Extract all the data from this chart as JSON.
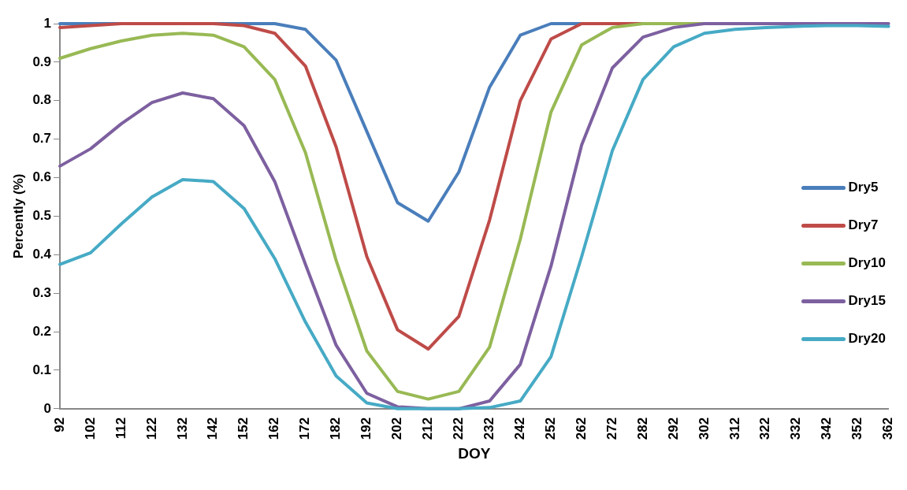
{
  "chart_data": {
    "type": "line",
    "xlabel": "DOY",
    "ylabel": "Percently (%)",
    "categories": [
      "92",
      "102",
      "112",
      "122",
      "132",
      "142",
      "152",
      "162",
      "172",
      "182",
      "192",
      "202",
      "212",
      "222",
      "232",
      "242",
      "252",
      "262",
      "272",
      "282",
      "292",
      "302",
      "312",
      "322",
      "332",
      "342",
      "352",
      "362"
    ],
    "ylim": [
      0,
      1
    ],
    "yticks": [
      0,
      0.1,
      0.2,
      0.3,
      0.4,
      0.5,
      0.6,
      0.7,
      0.8,
      0.9,
      1
    ],
    "grid": false,
    "legend": "right",
    "marker": "none",
    "line_style": "solid",
    "series": [
      {
        "name": "Dry5",
        "color": "#4a7ebb",
        "values": [
          1,
          1,
          1,
          null,
          null,
          1,
          1,
          1,
          0.985,
          0.905,
          0.72,
          0.535,
          0.487,
          0.615,
          0.835,
          0.97,
          1,
          1,
          null,
          null,
          null,
          null,
          null,
          null,
          null,
          null,
          null,
          null
        ]
      },
      {
        "name": "Dry7",
        "color": "#be4b48",
        "values": [
          0.99,
          0.995,
          1,
          1,
          1,
          1,
          0.995,
          0.975,
          0.89,
          0.68,
          0.395,
          0.205,
          0.155,
          0.24,
          0.49,
          0.8,
          0.96,
          1,
          1,
          1,
          null,
          null,
          null,
          null,
          null,
          null,
          null,
          null
        ]
      },
      {
        "name": "Dry10",
        "color": "#98b954",
        "values": [
          0.91,
          0.935,
          0.955,
          0.97,
          0.975,
          0.97,
          0.94,
          0.855,
          0.665,
          0.385,
          0.15,
          0.045,
          0.025,
          0.045,
          0.16,
          0.44,
          0.77,
          0.945,
          0.99,
          1,
          1,
          1,
          null,
          null,
          null,
          null,
          null,
          null
        ]
      },
      {
        "name": "Dry15",
        "color": "#7d60a0",
        "values": [
          0.63,
          0.675,
          0.74,
          0.795,
          0.82,
          0.805,
          0.735,
          0.59,
          0.375,
          0.165,
          0.04,
          0.005,
          0,
          0,
          0.02,
          0.115,
          0.37,
          0.685,
          0.885,
          0.965,
          0.99,
          1,
          1,
          1,
          1,
          1,
          1,
          1
        ]
      },
      {
        "name": "Dry20",
        "color": "#46aac5",
        "values": [
          0.375,
          0.405,
          0.48,
          0.55,
          0.595,
          0.59,
          0.52,
          0.39,
          0.225,
          0.085,
          0.015,
          0,
          0,
          0,
          0.003,
          0.02,
          0.135,
          0.395,
          0.67,
          0.855,
          0.94,
          0.975,
          0.985,
          0.99,
          0.993,
          0.995,
          0.995,
          0.993
        ]
      }
    ]
  }
}
